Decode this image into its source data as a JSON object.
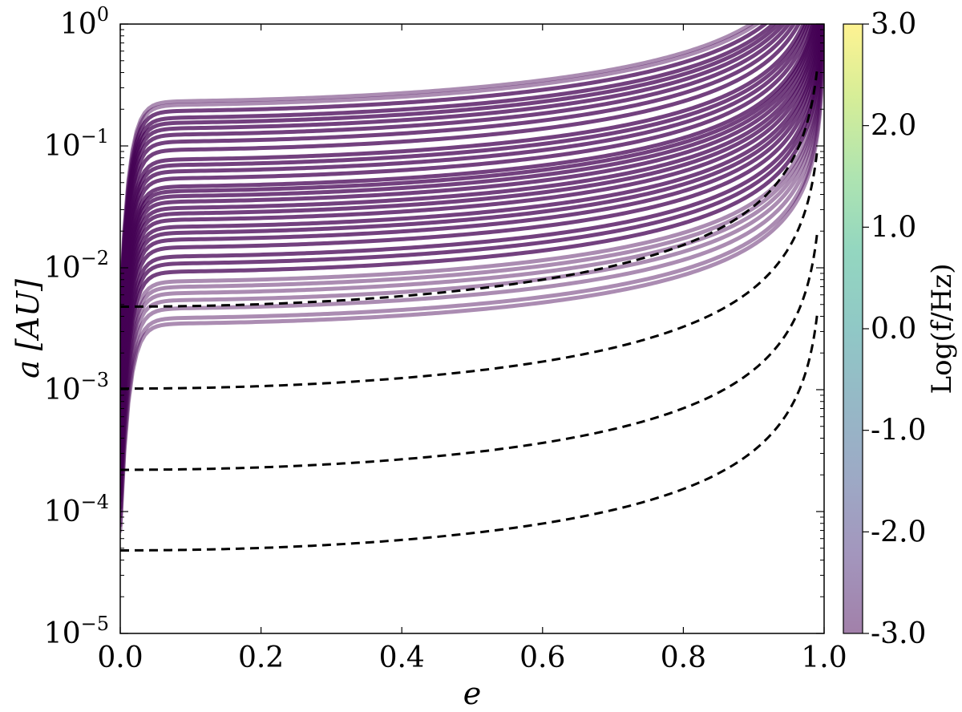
{
  "chart_data": {
    "type": "line",
    "xlabel": "e",
    "ylabel": "a [AU]",
    "x_scale": "linear",
    "y_scale": "log",
    "xlim": [
      0.0,
      1.0
    ],
    "ylim": [
      1e-05,
      1.0
    ],
    "x_ticks": [
      "0.0",
      "0.2",
      "0.4",
      "0.6",
      "0.8",
      "1.0"
    ],
    "y_ticks": [
      {
        "base": "10",
        "exp": "0",
        "value": 1.0
      },
      {
        "base": "10",
        "exp": "−1",
        "value": 0.1
      },
      {
        "base": "10",
        "exp": "−2",
        "value": 0.01
      },
      {
        "base": "10",
        "exp": "−3",
        "value": 0.001
      },
      {
        "base": "10",
        "exp": "−4",
        "value": 0.0001
      },
      {
        "base": "10",
        "exp": "−5",
        "value": 1e-05
      }
    ],
    "grid": false,
    "colorbar": {
      "label": "Log(f/Hz)",
      "range": [
        -3.0,
        3.0
      ],
      "ticks": [
        "3.0",
        "2.0",
        "1.0",
        "0.0",
        "-1.0",
        "-2.0",
        "-3.0"
      ],
      "colormap": "viridis",
      "alpha": 0.5
    },
    "series": [
      {
        "style": "solid",
        "color": "#440154",
        "curve_type": "evolution_tracks",
        "a_at_e_0_5": [
          0.3,
          0.28,
          0.25,
          0.22,
          0.2,
          0.18,
          0.16,
          0.14,
          0.12,
          0.1,
          0.09,
          0.08,
          0.07,
          0.06,
          0.055,
          0.05,
          0.045,
          0.04,
          0.036,
          0.032,
          0.028,
          0.025,
          0.022,
          0.019,
          0.016,
          0.014,
          0.012,
          0.01,
          0.009,
          0.008,
          0.007,
          0.006,
          0.005,
          0.0045
        ]
      },
      {
        "style": "dashed",
        "color": "#000000",
        "a_at_e_0": 0.0048,
        "e_end": 0.99,
        "a_at_e_end": 0.42
      },
      {
        "style": "dashed",
        "color": "#000000",
        "a_at_e_0": 0.00102,
        "e_end": 0.99,
        "a_at_e_end": 0.09
      },
      {
        "style": "dashed",
        "color": "#000000",
        "a_at_e_0": 0.00022,
        "e_end": 0.99,
        "a_at_e_end": 0.019
      },
      {
        "style": "dashed",
        "color": "#000000",
        "a_at_e_0": 4.8e-05,
        "e_end": 0.99,
        "a_at_e_end": 0.0041
      }
    ]
  }
}
